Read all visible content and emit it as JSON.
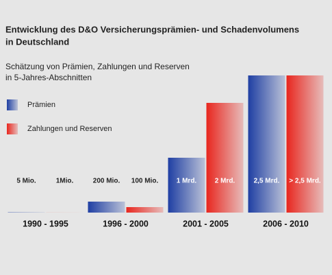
{
  "chart_data": {
    "type": "bar",
    "title": [
      "Entwicklung des D&O Versicherungsprämien- und Schadenvolumens",
      "in Deutschland"
    ],
    "subtitle": [
      "Schätzung von Prämien, Zahlungen und Reserven",
      "in 5-Jahres-Abschnitten"
    ],
    "categories": [
      "1990 - 1995",
      "1996 - 2000",
      "2001 - 2005",
      "2006 - 2010"
    ],
    "series": [
      {
        "name": "Prämien",
        "color": "#1f3fa3",
        "values": [
          5,
          200,
          1000,
          2500
        ],
        "value_labels": [
          "5 Mio.",
          "200 Mio.",
          "1 Mrd.",
          "2,5 Mrd."
        ]
      },
      {
        "name": "Zahlungen und Reserven",
        "color": "#e8261e",
        "values": [
          1,
          100,
          2000,
          2500
        ],
        "value_labels": [
          "1Mio.",
          "100 Mio.",
          "2 Mrd.",
          "> 2,5 Mrd."
        ]
      }
    ]
  }
}
